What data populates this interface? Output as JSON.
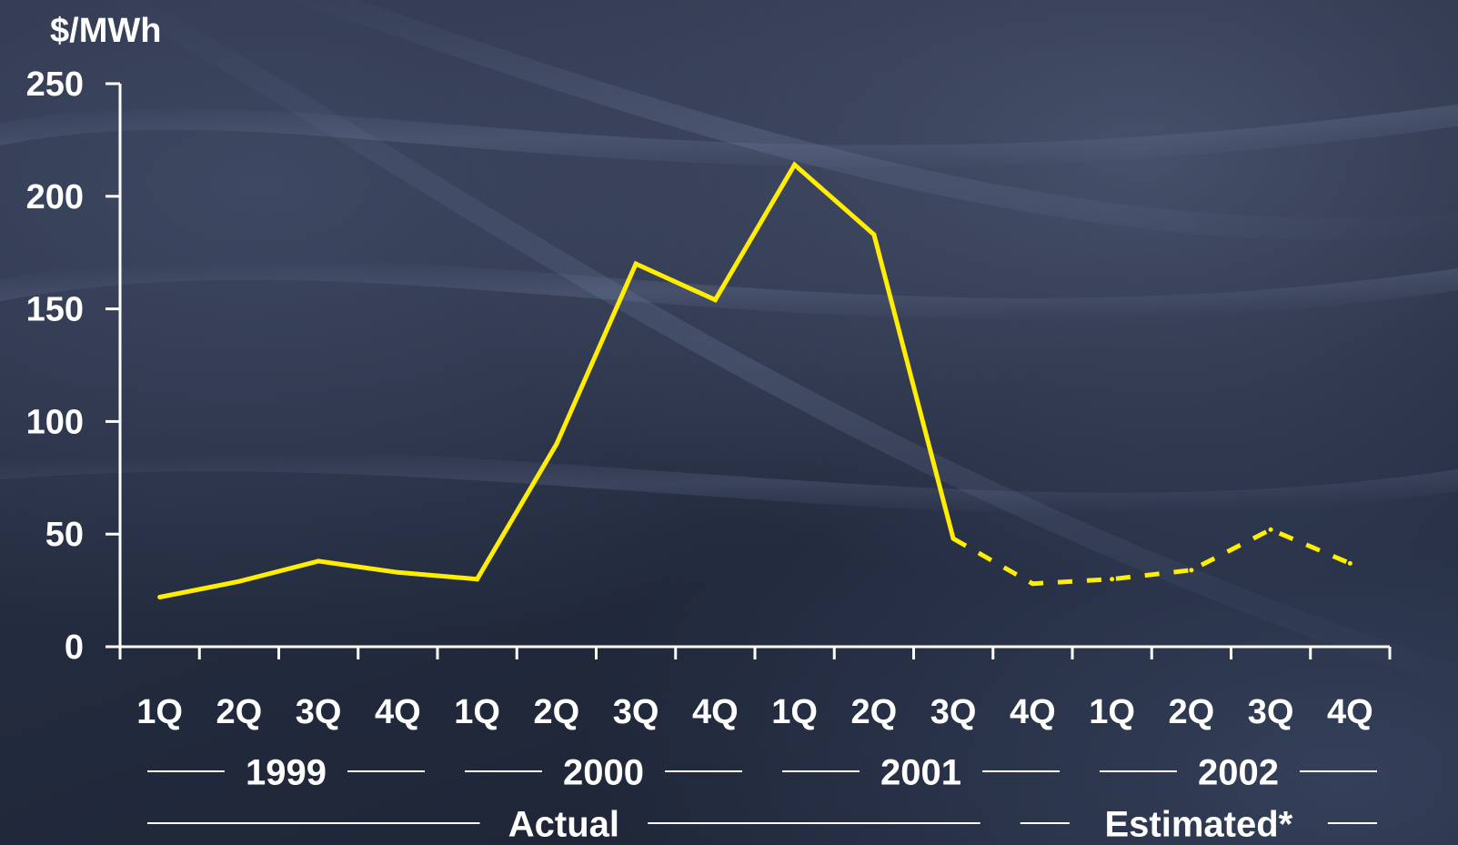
{
  "chart_data": {
    "type": "line",
    "ylabel": "$/MWh",
    "ylim": [
      0,
      250
    ],
    "yticks": [
      0,
      50,
      100,
      150,
      200,
      250
    ],
    "categories": [
      "1Q",
      "2Q",
      "3Q",
      "4Q",
      "1Q",
      "2Q",
      "3Q",
      "4Q",
      "1Q",
      "2Q",
      "3Q",
      "4Q",
      "1Q",
      "2Q",
      "3Q",
      "4Q"
    ],
    "years": [
      {
        "label": "1999",
        "start": 0,
        "end": 3
      },
      {
        "label": "2000",
        "start": 4,
        "end": 7
      },
      {
        "label": "2001",
        "start": 8,
        "end": 11
      },
      {
        "label": "2002",
        "start": 12,
        "end": 15
      }
    ],
    "periods": [
      {
        "label": "Actual",
        "start": 0,
        "end": 10
      },
      {
        "label": "Estimated*",
        "start": 11,
        "end": 15
      }
    ],
    "series": [
      {
        "x": [
          0.5,
          1.5,
          2.5,
          3.5,
          4.5,
          5.5,
          6.5,
          7.5,
          8.5,
          9.5,
          10.5
        ],
        "values": [
          22,
          29,
          38,
          33,
          30,
          90,
          170,
          154,
          214,
          183,
          48
        ],
        "style": "solid",
        "color": "#ffee00"
      },
      {
        "x": [
          10.5,
          11.5,
          12.5,
          13.5,
          14.5,
          15.5
        ],
        "values": [
          48,
          28,
          30,
          34,
          52,
          37
        ],
        "style": "dashed",
        "color": "#ffee00"
      }
    ],
    "grid": false,
    "legend": "none"
  }
}
